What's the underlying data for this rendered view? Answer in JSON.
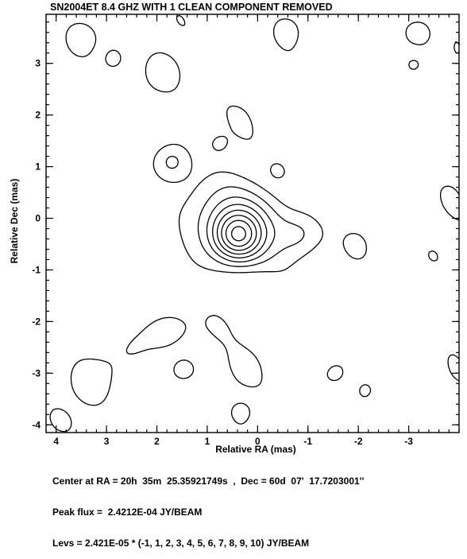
{
  "chart_data": {
    "type": "contour",
    "title": "SN2004ET 8.4 GHZ WITH 1 CLEAN COMPONENT REMOVED",
    "xlabel": "Relative RA (mas)",
    "ylabel": "Relative Dec (mas)",
    "xlim": [
      4.2,
      -4.0
    ],
    "ylim": [
      -4.15,
      3.95
    ],
    "x_ticks": [
      "4",
      "3",
      "2",
      "1",
      "0",
      "-1",
      "-2",
      "-3"
    ],
    "x_tick_values": [
      4,
      3,
      2,
      1,
      0,
      -1,
      -2,
      -3
    ],
    "y_ticks": [
      "3",
      "2",
      "1",
      "0",
      "-1",
      "-2",
      "-3",
      "-4"
    ],
    "y_tick_values": [
      3,
      2,
      1,
      0,
      -1,
      -2,
      -3,
      -4
    ],
    "peak_position": [
      0.4,
      -0.35
    ],
    "contour_multipliers": [
      -1,
      1,
      2,
      3,
      4,
      5,
      6,
      7,
      8,
      9,
      10
    ],
    "base_level_jy_per_beam": 2.421e-05,
    "peak_flux_jy_per_beam": 0.00024212,
    "negative_contour_style": "dashed"
  },
  "footer": {
    "center": "Center at RA = 20h  35m  25.35921749s  ,  Dec = 60d  07'  17.7203001''",
    "peak": "Peak flux =  2.4212E-04 JY/BEAM",
    "levs": "Levs = 2.421E-05 * (-1, 1, 2, 3, 4, 5, 6, 7, 8, 9, 10) JY/BEAM"
  }
}
